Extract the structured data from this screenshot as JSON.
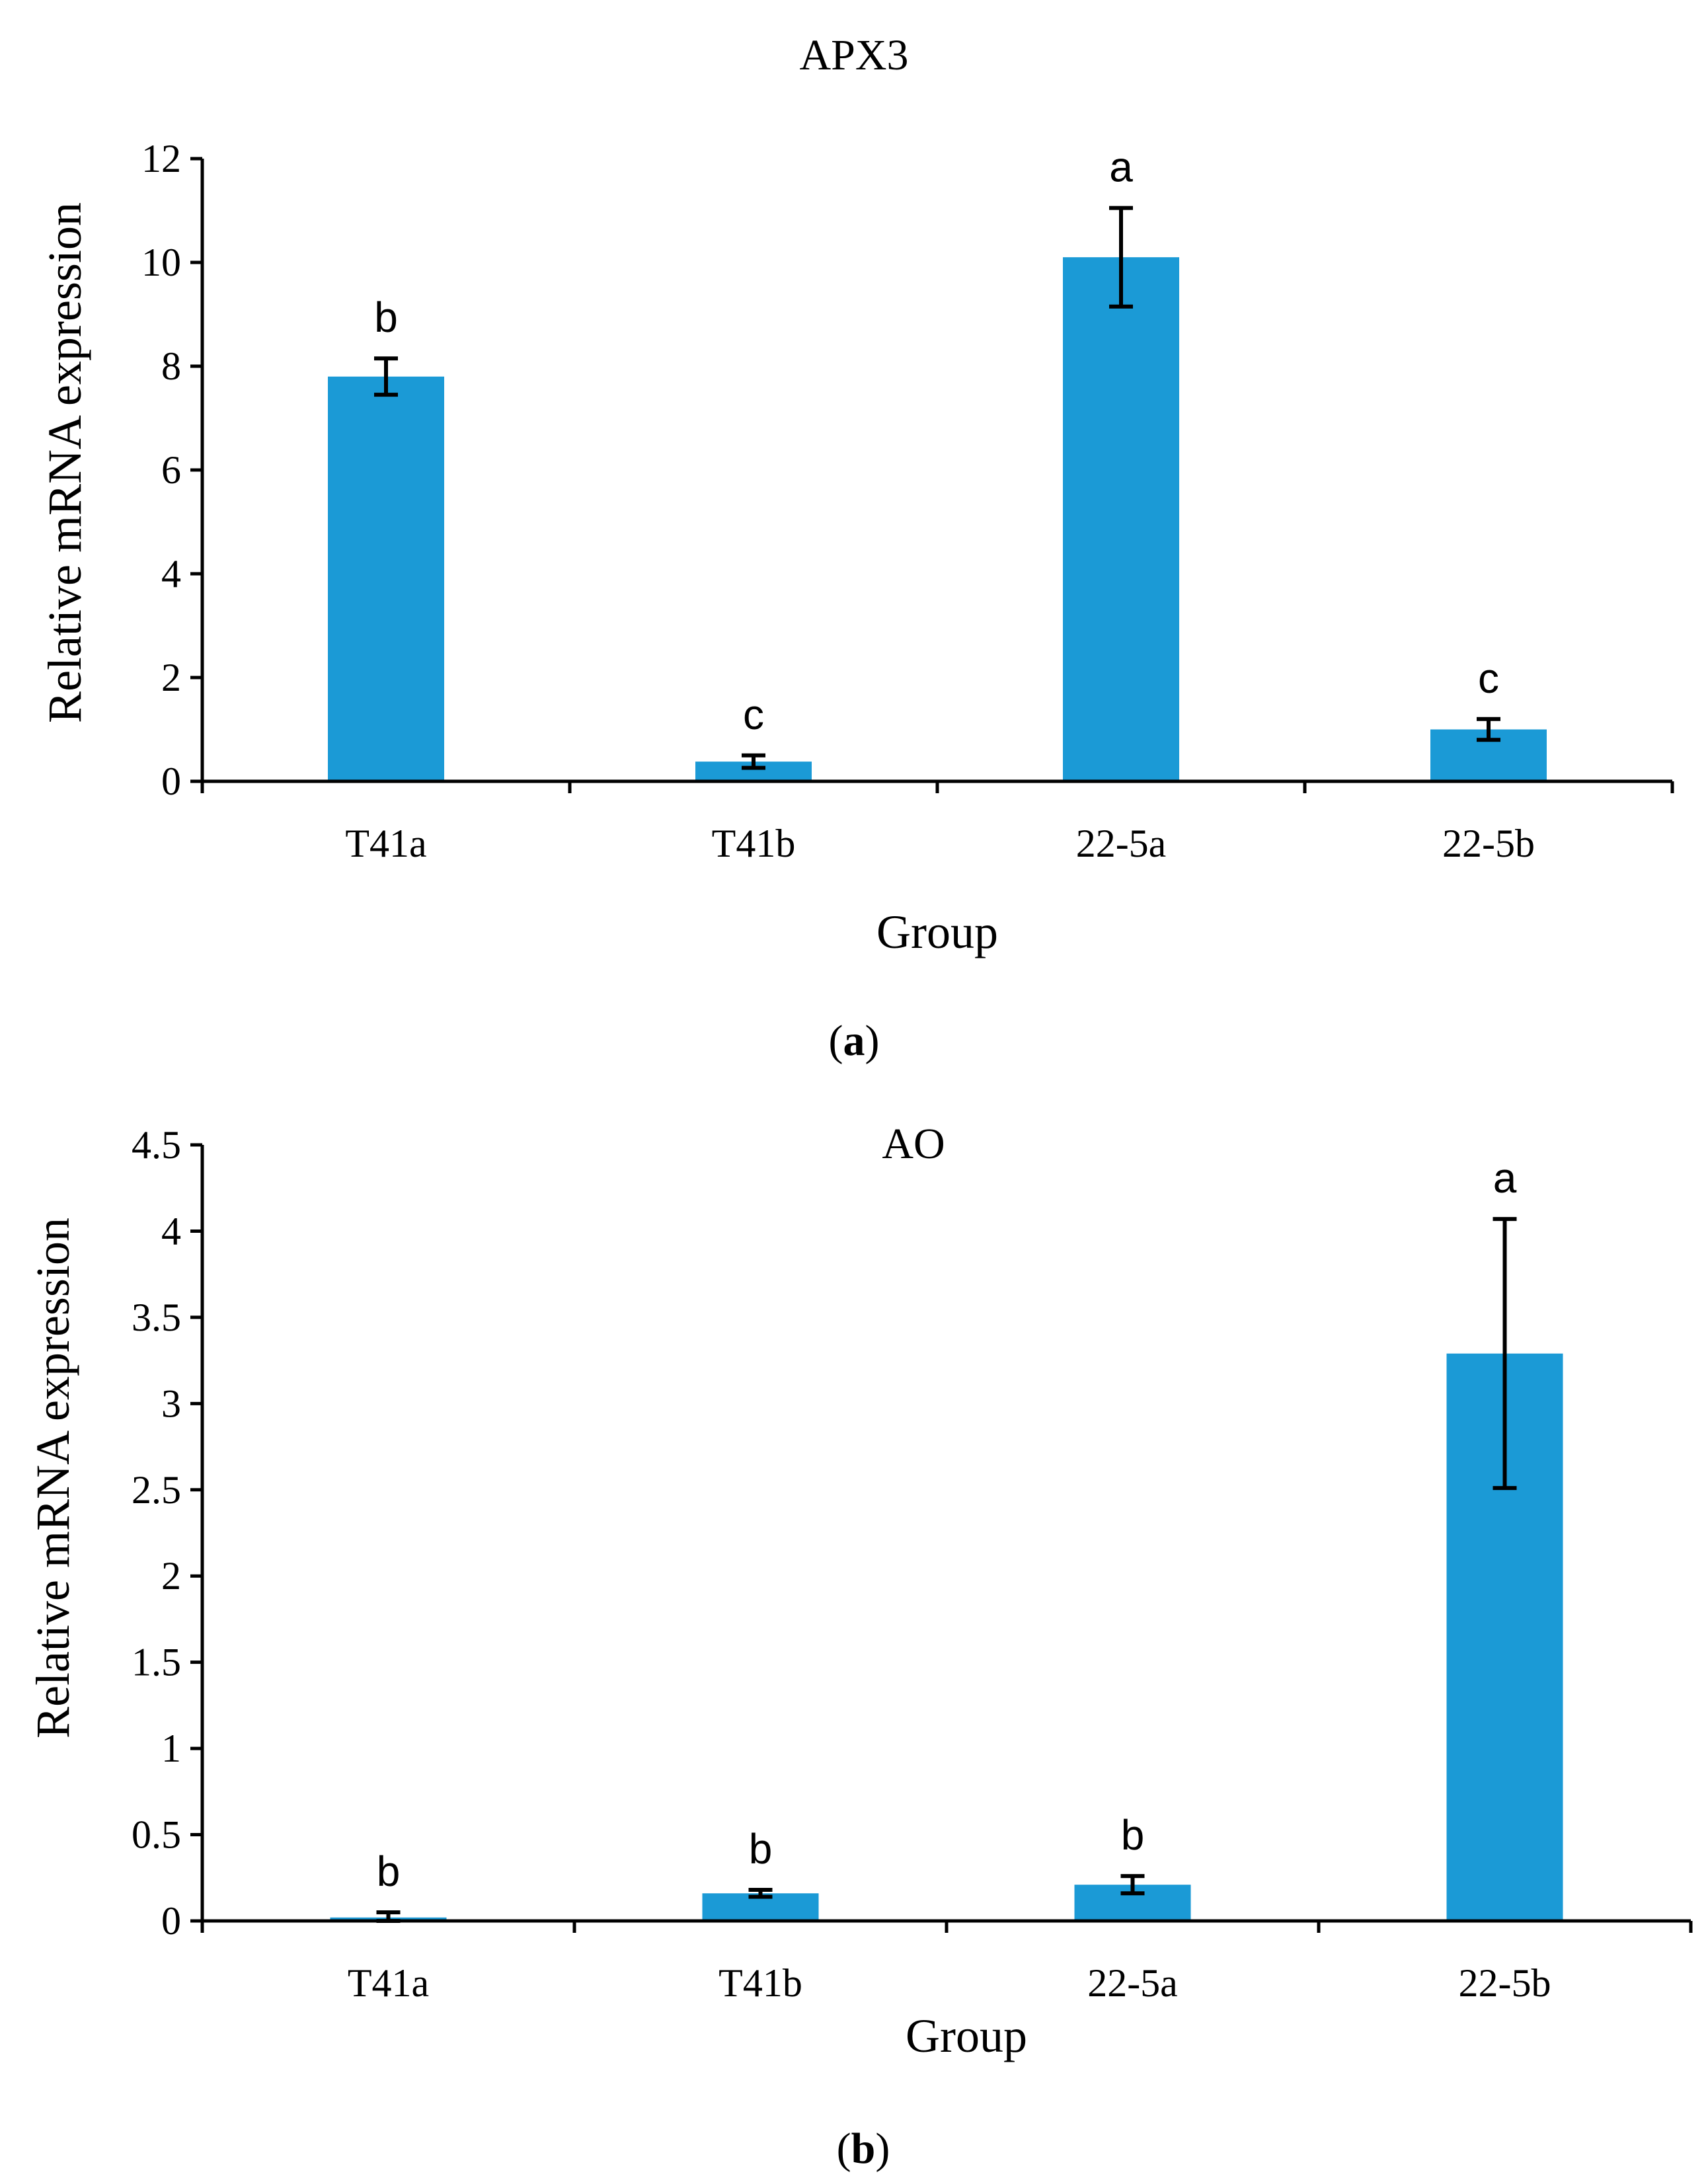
{
  "figure": {
    "bar_color": "#1b9ad6",
    "axis_color": "#000000"
  },
  "chart_data": [
    {
      "type": "bar",
      "title": "APX3",
      "panel_label": "a",
      "xlabel": "Group",
      "ylabel": "Relative mRNA expression",
      "categories": [
        "T41a",
        "T41b",
        "22-5a",
        "22-5b"
      ],
      "values": [
        7.8,
        0.38,
        10.1,
        1.0
      ],
      "error": [
        0.35,
        0.12,
        0.95,
        0.2
      ],
      "significance": [
        "b",
        "c",
        "a",
        "c"
      ],
      "ylim": [
        0,
        12
      ],
      "yticks": [
        0,
        2,
        4,
        6,
        8,
        10,
        12
      ],
      "ytick_labels": [
        "0",
        "2",
        "4",
        "6",
        "8",
        "10",
        "12"
      ],
      "grid": false,
      "legend": "none"
    },
    {
      "type": "bar",
      "title": "AO",
      "panel_label": "b",
      "xlabel": "Group",
      "ylabel": "Relative mRNA expression",
      "categories": [
        "T41a",
        "T41b",
        "22-5a",
        "22-5b"
      ],
      "values": [
        0.02,
        0.16,
        0.21,
        3.29
      ],
      "error": [
        0.03,
        0.02,
        0.05,
        0.78
      ],
      "significance": [
        "b",
        "b",
        "b",
        "a"
      ],
      "ylim": [
        0,
        4.5
      ],
      "yticks": [
        0,
        0.5,
        1,
        1.5,
        2,
        2.5,
        3,
        3.5,
        4,
        4.5
      ],
      "ytick_labels": [
        "0",
        "0.5",
        "1",
        "1.5",
        "2",
        "2.5",
        "3",
        "3.5",
        "4",
        "4.5"
      ],
      "grid": false,
      "legend": "none"
    }
  ]
}
